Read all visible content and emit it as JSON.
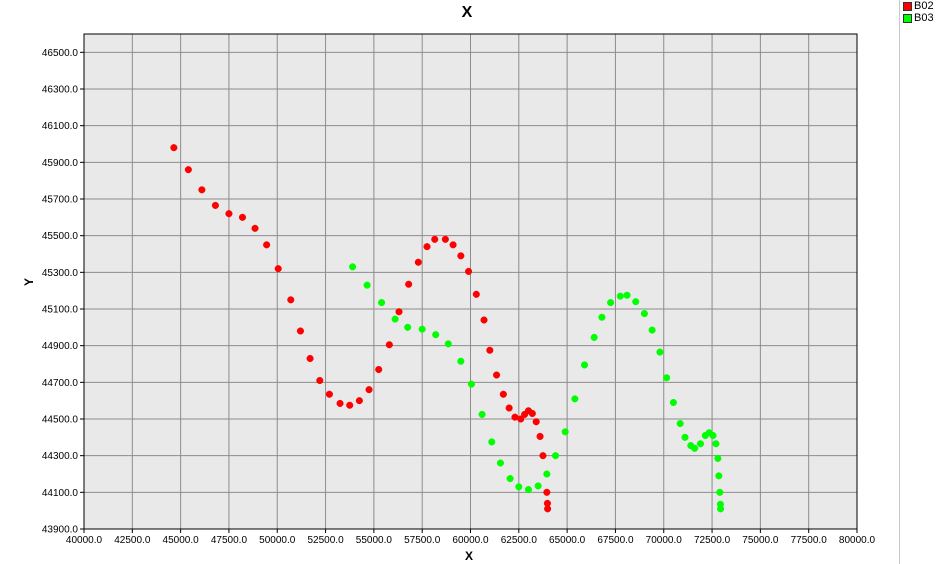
{
  "chart_data": {
    "type": "scatter",
    "title": "X",
    "xlabel": "X",
    "ylabel": "Y",
    "xlim": [
      40000,
      80000
    ],
    "ylim": [
      43900,
      46600
    ],
    "x_ticks": [
      "40000.0",
      "42500.0",
      "45000.0",
      "47500.0",
      "50000.0",
      "52500.0",
      "55000.0",
      "57500.0",
      "60000.0",
      "62500.0",
      "65000.0",
      "67500.0",
      "70000.0",
      "72500.0",
      "75000.0",
      "77500.0",
      "80000.0"
    ],
    "y_ticks": [
      "43900.0",
      "44100.0",
      "44300.0",
      "44500.0",
      "44700.0",
      "44900.0",
      "45100.0",
      "45300.0",
      "45500.0",
      "45700.0",
      "45900.0",
      "46100.0",
      "46300.0",
      "46500.0"
    ],
    "grid": true,
    "legend_position": "top-right",
    "series": [
      {
        "name": "B02",
        "color": "#ff0000",
        "points": [
          [
            44650,
            45980
          ],
          [
            45400,
            45860
          ],
          [
            46100,
            45750
          ],
          [
            46800,
            45665
          ],
          [
            47500,
            45620
          ],
          [
            48200,
            45600
          ],
          [
            48850,
            45540
          ],
          [
            49450,
            45450
          ],
          [
            50050,
            45320
          ],
          [
            50700,
            45150
          ],
          [
            51200,
            44980
          ],
          [
            51700,
            44830
          ],
          [
            52200,
            44710
          ],
          [
            52700,
            44635
          ],
          [
            53250,
            44585
          ],
          [
            53750,
            44575
          ],
          [
            54250,
            44600
          ],
          [
            54750,
            44660
          ],
          [
            55250,
            44770
          ],
          [
            55800,
            44905
          ],
          [
            56300,
            45085
          ],
          [
            56800,
            45235
          ],
          [
            57300,
            45355
          ],
          [
            57750,
            45440
          ],
          [
            58150,
            45480
          ],
          [
            58700,
            45480
          ],
          [
            59100,
            45450
          ],
          [
            59500,
            45390
          ],
          [
            59900,
            45305
          ],
          [
            60300,
            45180
          ],
          [
            60700,
            45040
          ],
          [
            61000,
            44875
          ],
          [
            61350,
            44740
          ],
          [
            61700,
            44635
          ],
          [
            62000,
            44560
          ],
          [
            62300,
            44510
          ],
          [
            62600,
            44500
          ],
          [
            62800,
            44525
          ],
          [
            63000,
            44545
          ],
          [
            63200,
            44530
          ],
          [
            63400,
            44485
          ],
          [
            63600,
            44405
          ],
          [
            63750,
            44300
          ],
          [
            63950,
            44100
          ],
          [
            63980,
            44040
          ],
          [
            63990,
            44010
          ]
        ]
      },
      {
        "name": "B03",
        "color": "#00ff00",
        "points": [
          [
            53900,
            45330
          ],
          [
            54650,
            45230
          ],
          [
            55400,
            45135
          ],
          [
            56100,
            45045
          ],
          [
            56750,
            45000
          ],
          [
            57500,
            44990
          ],
          [
            58200,
            44960
          ],
          [
            58850,
            44910
          ],
          [
            59500,
            44815
          ],
          [
            60050,
            44690
          ],
          [
            60600,
            44525
          ],
          [
            61100,
            44375
          ],
          [
            61550,
            44260
          ],
          [
            62050,
            44175
          ],
          [
            62500,
            44130
          ],
          [
            63000,
            44115
          ],
          [
            63500,
            44135
          ],
          [
            63950,
            44200
          ],
          [
            64400,
            44300
          ],
          [
            64900,
            44430
          ],
          [
            65400,
            44610
          ],
          [
            65900,
            44795
          ],
          [
            66400,
            44945
          ],
          [
            66800,
            45055
          ],
          [
            67250,
            45135
          ],
          [
            67750,
            45170
          ],
          [
            68100,
            45175
          ],
          [
            68550,
            45140
          ],
          [
            69000,
            45075
          ],
          [
            69400,
            44985
          ],
          [
            69800,
            44865
          ],
          [
            70150,
            44725
          ],
          [
            70500,
            44590
          ],
          [
            70850,
            44475
          ],
          [
            71100,
            44400
          ],
          [
            71400,
            44355
          ],
          [
            71600,
            44340
          ],
          [
            71900,
            44365
          ],
          [
            72150,
            44410
          ],
          [
            72350,
            44425
          ],
          [
            72550,
            44410
          ],
          [
            72700,
            44365
          ],
          [
            72800,
            44285
          ],
          [
            72850,
            44190
          ],
          [
            72900,
            44100
          ],
          [
            72930,
            44035
          ],
          [
            72940,
            44010
          ]
        ]
      }
    ]
  }
}
